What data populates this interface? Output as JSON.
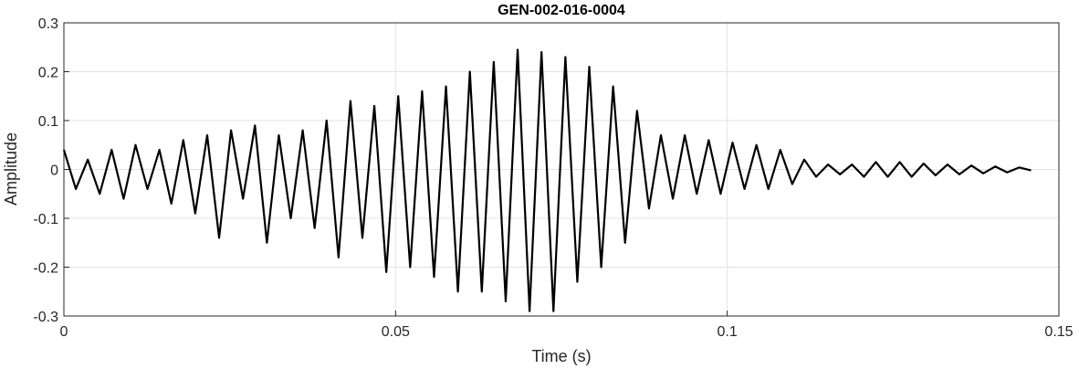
{
  "chart_data": {
    "type": "line",
    "title": "GEN-002-016-0004",
    "xlabel": "Time (s)",
    "ylabel": "Amplitude",
    "x": [
      0,
      0.0018,
      0.0036,
      0.0054,
      0.0072,
      0.009,
      0.0108,
      0.0126,
      0.0144,
      0.0162,
      0.018,
      0.0198,
      0.0216,
      0.0234,
      0.0252,
      0.027,
      0.0288,
      0.0306,
      0.0324,
      0.0342,
      0.036,
      0.0378,
      0.0396,
      0.0414,
      0.0432,
      0.045,
      0.0468,
      0.0486,
      0.0504,
      0.0522,
      0.054,
      0.0558,
      0.0576,
      0.0594,
      0.0612,
      0.063,
      0.0648,
      0.0666,
      0.0684,
      0.0702,
      0.072,
      0.0738,
      0.0756,
      0.0774,
      0.0792,
      0.081,
      0.0828,
      0.0846,
      0.0864,
      0.0882,
      0.09,
      0.0918,
      0.0936,
      0.0954,
      0.0972,
      0.099,
      0.1008,
      0.1026,
      0.1044,
      0.1062,
      0.108,
      0.1098,
      0.1116,
      0.1134,
      0.1152,
      0.117,
      0.1188,
      0.1206,
      0.1224,
      0.1242,
      0.126,
      0.1278,
      0.1296,
      0.1314,
      0.1332,
      0.135,
      0.1368,
      0.1386,
      0.1404,
      0.1422,
      0.144,
      0.1458
    ],
    "series": [
      {
        "color": "#000000",
        "values": [
          0.04,
          -0.04,
          0.02,
          -0.05,
          0.04,
          -0.06,
          0.05,
          -0.04,
          0.04,
          -0.07,
          0.06,
          -0.09,
          0.07,
          -0.14,
          0.08,
          -0.06,
          0.09,
          -0.15,
          0.07,
          -0.1,
          0.08,
          -0.12,
          0.1,
          -0.18,
          0.14,
          -0.14,
          0.13,
          -0.21,
          0.15,
          -0.2,
          0.16,
          -0.22,
          0.17,
          -0.25,
          0.2,
          -0.25,
          0.22,
          -0.27,
          0.245,
          -0.29,
          0.24,
          -0.29,
          0.23,
          -0.23,
          0.21,
          -0.2,
          0.17,
          -0.15,
          0.12,
          -0.08,
          0.07,
          -0.06,
          0.07,
          -0.05,
          0.06,
          -0.05,
          0.055,
          -0.04,
          0.05,
          -0.04,
          0.04,
          -0.03,
          0.02,
          -0.015,
          0.01,
          -0.01,
          0.01,
          -0.015,
          0.015,
          -0.015,
          0.015,
          -0.015,
          0.012,
          -0.012,
          0.01,
          -0.01,
          0.008,
          -0.008,
          0.006,
          -0.006,
          0.004,
          -0.002
        ]
      }
    ],
    "xlim": [
      0,
      0.15
    ],
    "xticks": [
      0,
      0.05,
      0.1,
      0.15
    ],
    "ylim": [
      -0.3,
      0.3
    ],
    "yticks": [
      -0.3,
      -0.2,
      -0.1,
      0,
      0.1,
      0.2,
      0.3
    ],
    "grid": true
  }
}
